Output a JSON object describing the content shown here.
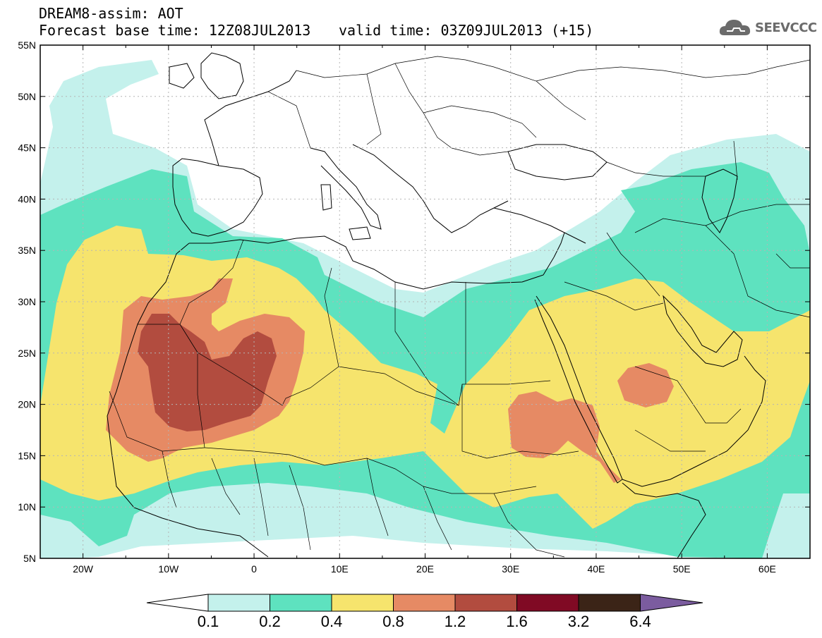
{
  "header": {
    "line1": "DREAM8-assim: AOT",
    "line2": "Forecast base time: 12Z08JUL2013",
    "line2b": "valid time: 03Z09JUL2013 (+15)"
  },
  "logo": {
    "text": "SEEVCCC",
    "icon": "cloud-icon"
  },
  "map": {
    "lon_range": [
      -25,
      65
    ],
    "lat_range": [
      5,
      55
    ],
    "lat_ticks": [
      "5N",
      "10N",
      "15N",
      "20N",
      "25N",
      "30N",
      "35N",
      "40N",
      "45N",
      "50N",
      "55N"
    ],
    "lon_ticks": [
      "20W",
      "10W",
      "0",
      "10E",
      "20E",
      "30E",
      "40E",
      "50E",
      "60E"
    ],
    "grid": true
  },
  "colorbar": {
    "labels": [
      "0.1",
      "0.2",
      "0.4",
      "0.8",
      "1.2",
      "1.6",
      "3.2",
      "6.4"
    ],
    "colors": [
      "#ffffff",
      "#c4f1ec",
      "#5ee2bf",
      "#f6e46d",
      "#e68a64",
      "#b24c3f",
      "#800a24",
      "#3b2417",
      "#7b5c9f"
    ]
  },
  "fill_colors": {
    "c01": "#c4f1ec",
    "c02": "#5ee2bf",
    "c04": "#f6e46d",
    "c08": "#e68a64",
    "c12": "#b24c3f",
    "land_line": "#000000"
  }
}
